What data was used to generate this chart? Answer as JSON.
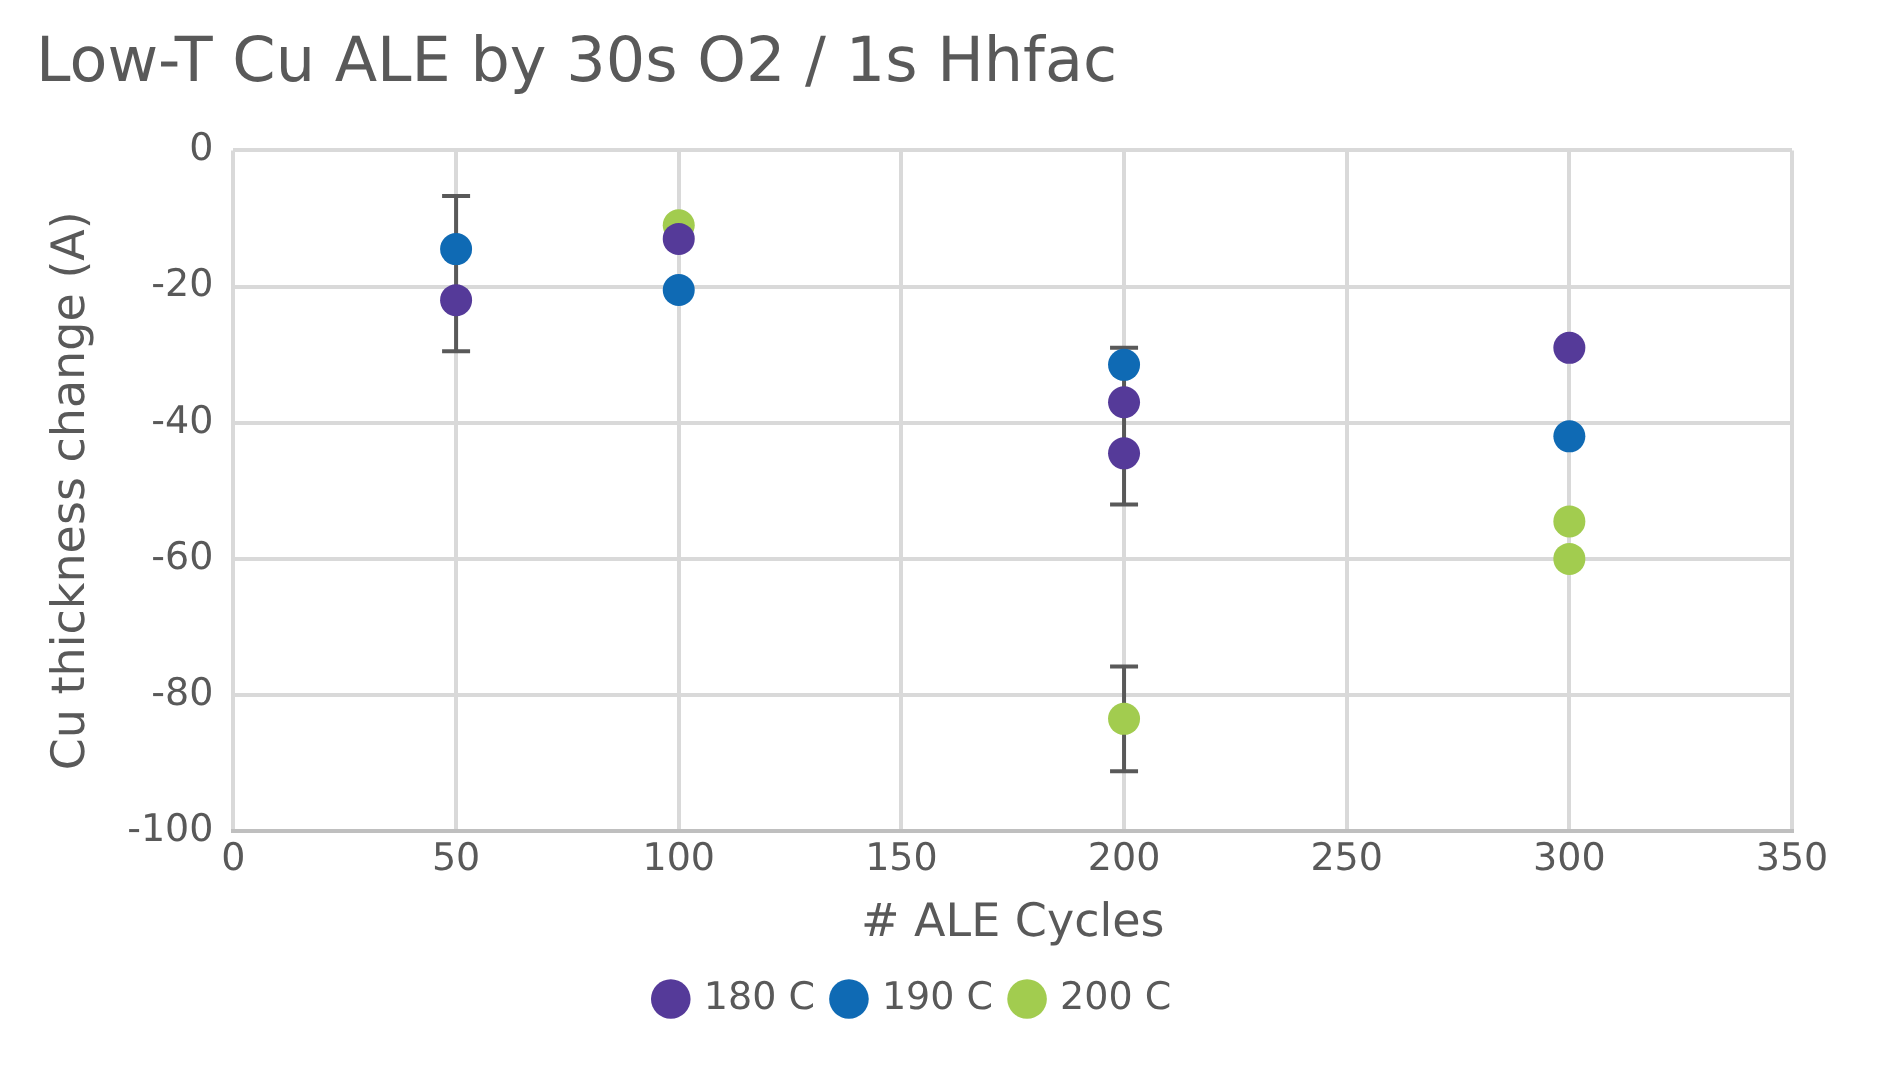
{
  "chart_data": {
    "type": "scatter",
    "title": "Low-T Cu ALE by 30s O2 / 1s Hhfac",
    "xlabel": "# ALE Cycles",
    "ylabel": "Cu thickness change (A)",
    "xlim": [
      0,
      350
    ],
    "xticks": [
      0,
      50,
      100,
      150,
      200,
      250,
      300,
      350
    ],
    "ylim": [
      -100,
      0
    ],
    "yticks": [
      -100,
      -80,
      -60,
      -40,
      -20,
      0
    ],
    "grid": true,
    "legend": "bottom",
    "marker": "circle",
    "series": [
      {
        "name": "180 C",
        "color": "#553a99",
        "x": [
          50,
          100,
          200,
          200,
          300
        ],
        "values": [
          -22,
          -13,
          -37,
          -44.5,
          -29
        ],
        "errors": [
          [
            -29.5,
            -6.7
          ],
          null,
          null,
          [
            -52,
            -29
          ],
          null
        ]
      },
      {
        "name": "190 C",
        "color": "#0f6ab4",
        "x": [
          50,
          100,
          200,
          300
        ],
        "values": [
          -14.5,
          -20.5,
          -31.5,
          -42
        ]
      },
      {
        "name": "200 C",
        "color": "#a2cc4f",
        "x": [
          100,
          200,
          300,
          300
        ],
        "values": [
          -11,
          -83.5,
          -54.5,
          -60
        ],
        "errors": [
          null,
          [
            -91.2,
            -75.8
          ],
          null,
          null
        ]
      }
    ]
  }
}
